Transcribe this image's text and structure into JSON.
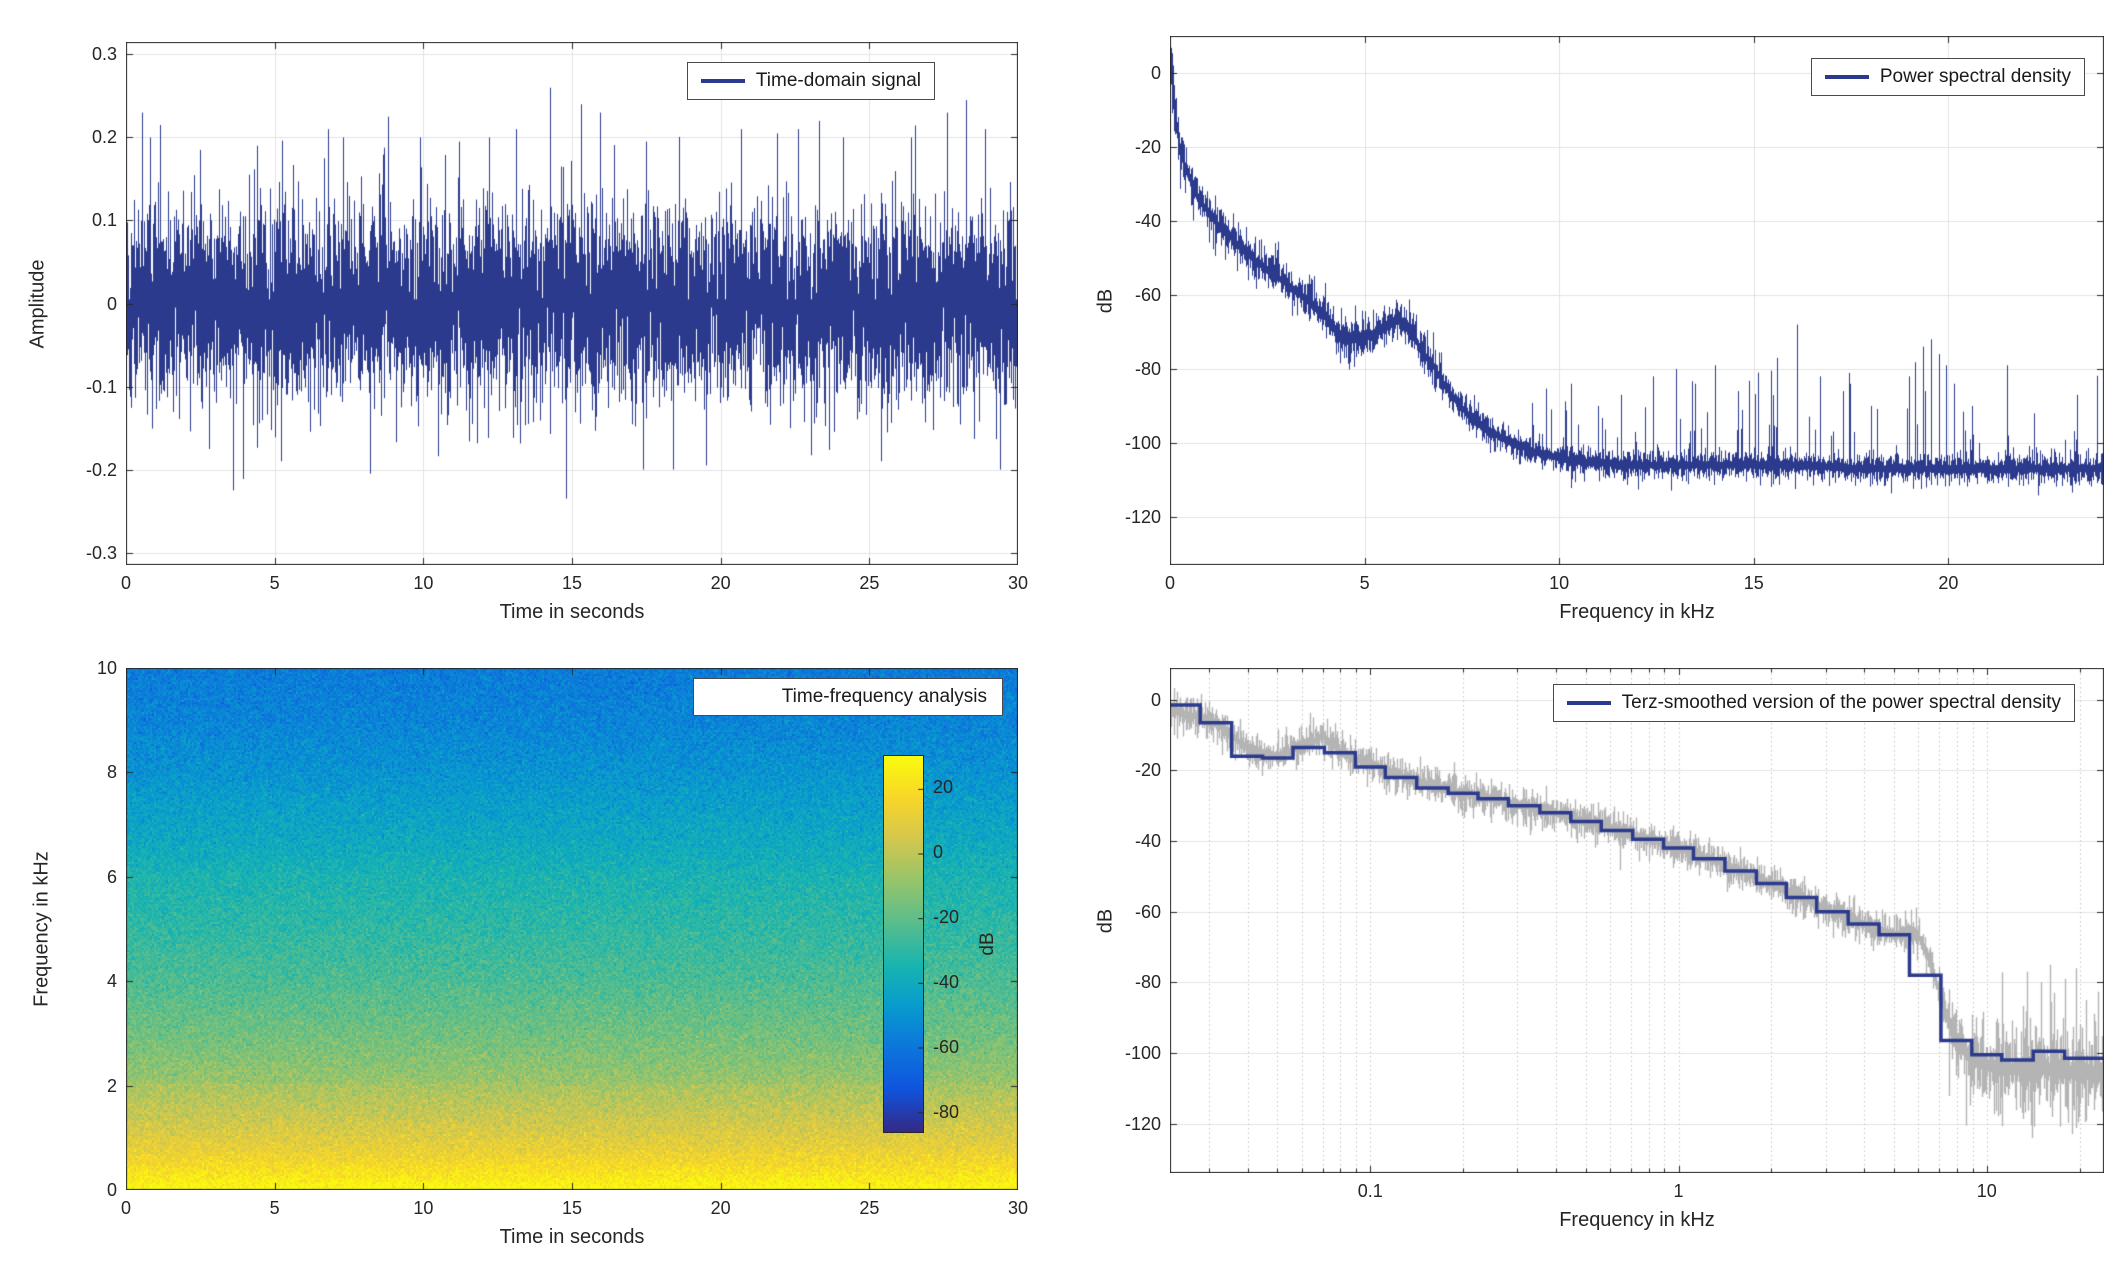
{
  "figure": {
    "background": "#ffffff"
  },
  "colors": {
    "line": "#2b3a8c",
    "gray": "#b4b4b4",
    "axis": "#262626",
    "grid": "#e3e3e3",
    "grid_dot": "#c4c4c4",
    "text": "#262626",
    "legend_border": "#4a4a4a",
    "background": "#ffffff"
  },
  "chart_data": [
    {
      "id": "time-domain",
      "type": "line",
      "kind": "noise-line",
      "seed": 101,
      "legend": {
        "label": "Time-domain signal",
        "sample": true
      },
      "x": {
        "label": "Time in seconds",
        "min": 0,
        "max": 30,
        "scale": "linear",
        "grid": true,
        "ticks": [
          {
            "v": 0,
            "l": "0"
          },
          {
            "v": 5,
            "l": "5"
          },
          {
            "v": 10,
            "l": "10"
          },
          {
            "v": 15,
            "l": "15"
          },
          {
            "v": 20,
            "l": "20"
          },
          {
            "v": 25,
            "l": "25"
          },
          {
            "v": 30,
            "l": "30"
          }
        ]
      },
      "y": {
        "label": "Amplitude",
        "min": -0.315,
        "max": 0.315,
        "ticks": [
          {
            "v": 0.3,
            "l": "0.3"
          },
          {
            "v": 0.2,
            "l": "0.2"
          },
          {
            "v": 0.1,
            "l": "0.1"
          },
          {
            "v": 0,
            "l": "0"
          },
          {
            "v": -0.1,
            "l": "-0.1"
          },
          {
            "v": -0.2,
            "l": "-0.2"
          },
          {
            "v": -0.3,
            "l": "-0.3"
          }
        ]
      },
      "data": {
        "sigma": 0.056,
        "samples_per_column": 8,
        "peaks": [
          [
            0.55,
            0.23
          ],
          [
            0.8,
            0.2
          ],
          [
            1.15,
            0.215
          ],
          [
            2.5,
            0.185
          ],
          [
            3.6,
            -0.225
          ],
          [
            4.4,
            0.19
          ],
          [
            5.2,
            -0.19
          ],
          [
            6.8,
            0.21
          ],
          [
            7.3,
            0.2
          ],
          [
            8.2,
            -0.205
          ],
          [
            8.8,
            0.225
          ],
          [
            9.9,
            0.2
          ],
          [
            11.2,
            0.195
          ],
          [
            12.2,
            0.2
          ],
          [
            13.1,
            0.21
          ],
          [
            14.25,
            0.26
          ],
          [
            14.8,
            -0.235
          ],
          [
            15.3,
            0.24
          ],
          [
            15.95,
            0.23
          ],
          [
            17.5,
            0.195
          ],
          [
            18.4,
            -0.2
          ],
          [
            19.5,
            -0.195
          ],
          [
            20.7,
            0.21
          ],
          [
            21.9,
            0.205
          ],
          [
            22.6,
            0.21
          ],
          [
            23.3,
            0.22
          ],
          [
            24.1,
            0.2
          ],
          [
            25.4,
            -0.19
          ],
          [
            26.4,
            0.2
          ],
          [
            27.6,
            0.23
          ],
          [
            28.25,
            0.245
          ],
          [
            28.9,
            0.21
          ],
          [
            29.4,
            -0.2
          ]
        ]
      }
    },
    {
      "id": "psd",
      "type": "line",
      "kind": "psd",
      "seed": 202,
      "legend": {
        "label": "Power spectral density",
        "sample": true
      },
      "x": {
        "label": "Frequency in kHz",
        "min": 0,
        "max": 24,
        "scale": "linear",
        "grid": true,
        "ticks": [
          {
            "v": 0,
            "l": "0"
          },
          {
            "v": 5,
            "l": "5"
          },
          {
            "v": 10,
            "l": "10"
          },
          {
            "v": 15,
            "l": "15"
          },
          {
            "v": 20,
            "l": "20"
          }
        ]
      },
      "y": {
        "label": "dB",
        "min": -133,
        "max": 10,
        "ticks": [
          {
            "v": 0,
            "l": "0"
          },
          {
            "v": -20,
            "l": "-20"
          },
          {
            "v": -40,
            "l": "-40"
          },
          {
            "v": -60,
            "l": "-60"
          },
          {
            "v": -80,
            "l": "-80"
          },
          {
            "v": -100,
            "l": "-100"
          },
          {
            "v": -120,
            "l": "-120"
          }
        ]
      },
      "data": {
        "backbone": [
          [
            0,
            8
          ],
          [
            0.05,
            0
          ],
          [
            0.1,
            -8
          ],
          [
            0.15,
            -14
          ],
          [
            0.25,
            -20
          ],
          [
            0.4,
            -26
          ],
          [
            0.6,
            -31
          ],
          [
            0.8,
            -35
          ],
          [
            1.0,
            -38
          ],
          [
            1.3,
            -42
          ],
          [
            1.7,
            -46
          ],
          [
            2.1,
            -50
          ],
          [
            2.6,
            -54
          ],
          [
            3.1,
            -58
          ],
          [
            3.6,
            -62
          ],
          [
            4.0,
            -66
          ],
          [
            4.3,
            -70
          ],
          [
            4.7,
            -72
          ],
          [
            5.0,
            -71
          ],
          [
            5.3,
            -70
          ],
          [
            5.6,
            -68
          ],
          [
            5.9,
            -67
          ],
          [
            6.1,
            -69
          ],
          [
            6.4,
            -74
          ],
          [
            6.8,
            -80
          ],
          [
            7.2,
            -87
          ],
          [
            7.7,
            -93
          ],
          [
            8.2,
            -97
          ],
          [
            8.8,
            -100
          ],
          [
            9.5,
            -103
          ],
          [
            10.5,
            -105
          ],
          [
            12,
            -106
          ],
          [
            14,
            -106
          ],
          [
            16,
            -106
          ],
          [
            18,
            -107
          ],
          [
            20,
            -107
          ],
          [
            22,
            -107
          ],
          [
            24,
            -107
          ]
        ],
        "noise_db_low": 3.1,
        "noise_db_high": 2.1,
        "comb_start": 9.3,
        "spikes": [
          [
            10.3,
            -84
          ],
          [
            11.0,
            -90
          ],
          [
            11.6,
            -87
          ],
          [
            12.4,
            -82
          ],
          [
            13.0,
            -80
          ],
          [
            13.5,
            -84
          ],
          [
            14.0,
            -79
          ],
          [
            14.6,
            -86
          ],
          [
            15.1,
            -81
          ],
          [
            15.6,
            -77
          ],
          [
            16.1,
            -68
          ],
          [
            16.7,
            -82
          ],
          [
            17.3,
            -86
          ],
          [
            18.0,
            -90
          ],
          [
            19.0,
            -82
          ],
          [
            19.35,
            -74
          ],
          [
            19.55,
            -72
          ],
          [
            19.75,
            -76
          ],
          [
            19.95,
            -79
          ],
          [
            20.15,
            -84
          ],
          [
            20.6,
            -90
          ],
          [
            21.5,
            -79
          ],
          [
            22.2,
            -92
          ],
          [
            23.3,
            -87
          ]
        ]
      }
    },
    {
      "id": "spectrogram",
      "type": "heatmap",
      "kind": "heatmap",
      "seed": 303,
      "legend": {
        "label": "Time-frequency analysis",
        "sample": false
      },
      "x": {
        "label": "Time in seconds",
        "min": 0,
        "max": 30,
        "scale": "linear",
        "grid": false,
        "ticks": [
          {
            "v": 0,
            "l": "0"
          },
          {
            "v": 5,
            "l": "5"
          },
          {
            "v": 10,
            "l": "10"
          },
          {
            "v": 15,
            "l": "15"
          },
          {
            "v": 20,
            "l": "20"
          },
          {
            "v": 25,
            "l": "25"
          },
          {
            "v": 30,
            "l": "30"
          }
        ]
      },
      "y": {
        "label": "Frequency in kHz",
        "min": 0,
        "max": 10,
        "ticks": [
          {
            "v": 10,
            "l": "10"
          },
          {
            "v": 8,
            "l": "8"
          },
          {
            "v": 6,
            "l": "6"
          },
          {
            "v": 4,
            "l": "4"
          },
          {
            "v": 2,
            "l": "2"
          },
          {
            "v": 0,
            "l": "0"
          }
        ]
      },
      "data": {
        "profile": [
          [
            0,
            29
          ],
          [
            0.2,
            24
          ],
          [
            0.5,
            17
          ],
          [
            0.8,
            11
          ],
          [
            1.2,
            5
          ],
          [
            1.6,
            0
          ],
          [
            2.0,
            -5
          ],
          [
            2.05,
            -8
          ],
          [
            2.6,
            -13
          ],
          [
            3.2,
            -18
          ],
          [
            4.0,
            -24
          ],
          [
            5.0,
            -30
          ],
          [
            6.0,
            -35
          ],
          [
            6.55,
            -40
          ],
          [
            7.5,
            -46
          ],
          [
            8.05,
            -50
          ],
          [
            9.0,
            -55
          ],
          [
            10,
            -58
          ]
        ],
        "speckle_db": 4.5
      },
      "colorbar": {
        "label": "dB",
        "vmin": -86,
        "vmax": 30,
        "ticks": [
          {
            "v": 20,
            "l": "20"
          },
          {
            "v": 0,
            "l": "0"
          },
          {
            "v": -20,
            "l": "-20"
          },
          {
            "v": -40,
            "l": "-40"
          },
          {
            "v": -60,
            "l": "-60"
          },
          {
            "v": -80,
            "l": "-80"
          }
        ],
        "colormap": [
          "#352a87",
          "#1053dd",
          "#0d75dc",
          "#089bce",
          "#18b5b0",
          "#59bd8c",
          "#95c46c",
          "#d3c74e",
          "#f8d629",
          "#f9fb0e"
        ]
      }
    },
    {
      "id": "terz-smoothed",
      "type": "line",
      "kind": "terz",
      "seed": 404,
      "legend": {
        "label": "Terz-smoothed version of the power spectral density",
        "sample": true
      },
      "x": {
        "label": "Frequency in kHz",
        "min": 0.0224,
        "max": 24,
        "scale": "log",
        "grid": true,
        "ticks": [
          {
            "v": 0.1,
            "l": "0.1"
          },
          {
            "v": 1,
            "l": "1"
          },
          {
            "v": 10,
            "l": "10"
          }
        ],
        "minor": [
          0.03,
          0.04,
          0.05,
          0.06,
          0.07,
          0.08,
          0.09,
          0.2,
          0.3,
          0.4,
          0.5,
          0.6,
          0.7,
          0.8,
          0.9,
          2,
          3,
          4,
          5,
          6,
          7,
          8,
          9,
          20
        ],
        "gridlines": [
          0.03,
          0.04,
          0.05,
          0.06,
          0.07,
          0.08,
          0.09,
          0.1,
          0.2,
          0.3,
          0.4,
          0.5,
          0.6,
          0.7,
          0.8,
          0.9,
          1,
          2,
          3,
          4,
          5,
          6,
          7,
          8,
          9,
          10,
          20
        ]
      },
      "y": {
        "label": "dB",
        "min": -134,
        "max": 9,
        "ticks": [
          {
            "v": 0,
            "l": "0"
          },
          {
            "v": -20,
            "l": "-20"
          },
          {
            "v": -40,
            "l": "-40"
          },
          {
            "v": -60,
            "l": "-60"
          },
          {
            "v": -80,
            "l": "-80"
          },
          {
            "v": -100,
            "l": "-100"
          },
          {
            "v": -120,
            "l": "-120"
          }
        ]
      },
      "data": {
        "bands": [
          [
            0.02,
            -1
          ],
          [
            0.025,
            -1.5
          ],
          [
            0.0315,
            -6.5
          ],
          [
            0.04,
            -16
          ],
          [
            0.05,
            -16.5
          ],
          [
            0.063,
            -13.5
          ],
          [
            0.08,
            -15
          ],
          [
            0.1,
            -19
          ],
          [
            0.125,
            -22
          ],
          [
            0.16,
            -25
          ],
          [
            0.2,
            -26.5
          ],
          [
            0.25,
            -28
          ],
          [
            0.315,
            -30
          ],
          [
            0.4,
            -32
          ],
          [
            0.5,
            -34.5
          ],
          [
            0.63,
            -37
          ],
          [
            0.8,
            -39.5
          ],
          [
            1,
            -42
          ],
          [
            1.25,
            -45
          ],
          [
            1.6,
            -48.5
          ],
          [
            2,
            -52
          ],
          [
            2.5,
            -56
          ],
          [
            3.15,
            -60
          ],
          [
            4,
            -63.5
          ],
          [
            5,
            -66.5
          ],
          [
            6.3,
            -78
          ],
          [
            8,
            -96.5
          ],
          [
            10,
            -100.5
          ],
          [
            12.5,
            -102
          ],
          [
            16,
            -99.5
          ],
          [
            20,
            -101.5
          ]
        ],
        "gray_backbone": [
          [
            0.0224,
            -3
          ],
          [
            0.028,
            -5
          ],
          [
            0.032,
            -7
          ],
          [
            0.04,
            -14
          ],
          [
            0.05,
            -16
          ],
          [
            0.056,
            -14
          ],
          [
            0.063,
            -12.5
          ],
          [
            0.07,
            -10
          ],
          [
            0.08,
            -15
          ],
          [
            0.09,
            -17
          ],
          [
            0.1,
            -18
          ],
          [
            0.125,
            -21.5
          ],
          [
            0.16,
            -24.5
          ],
          [
            0.2,
            -26.5
          ],
          [
            0.25,
            -28
          ],
          [
            0.315,
            -30
          ],
          [
            0.4,
            -32
          ],
          [
            0.5,
            -34.5
          ],
          [
            0.63,
            -37
          ],
          [
            0.8,
            -39.5
          ],
          [
            1,
            -42
          ],
          [
            1.25,
            -45
          ],
          [
            1.6,
            -48.5
          ],
          [
            2,
            -52
          ],
          [
            2.5,
            -56
          ],
          [
            3.15,
            -60
          ],
          [
            4,
            -63.5
          ],
          [
            5,
            -66.5
          ],
          [
            5.6,
            -65
          ],
          [
            6,
            -67
          ],
          [
            6.5,
            -74
          ],
          [
            7,
            -83
          ],
          [
            7.5,
            -91
          ],
          [
            8,
            -97
          ],
          [
            9,
            -101
          ],
          [
            10,
            -103
          ],
          [
            12,
            -104
          ],
          [
            16,
            -104
          ],
          [
            20,
            -105
          ],
          [
            23.4,
            -106
          ]
        ],
        "gray_spikes": [
          [
            0.065,
            -5
          ],
          [
            0.075,
            -9
          ],
          [
            13.5,
            -77
          ],
          [
            15,
            -80
          ],
          [
            16,
            -75
          ],
          [
            18,
            -79
          ],
          [
            19.5,
            -76
          ],
          [
            21,
            -85
          ]
        ]
      }
    }
  ]
}
